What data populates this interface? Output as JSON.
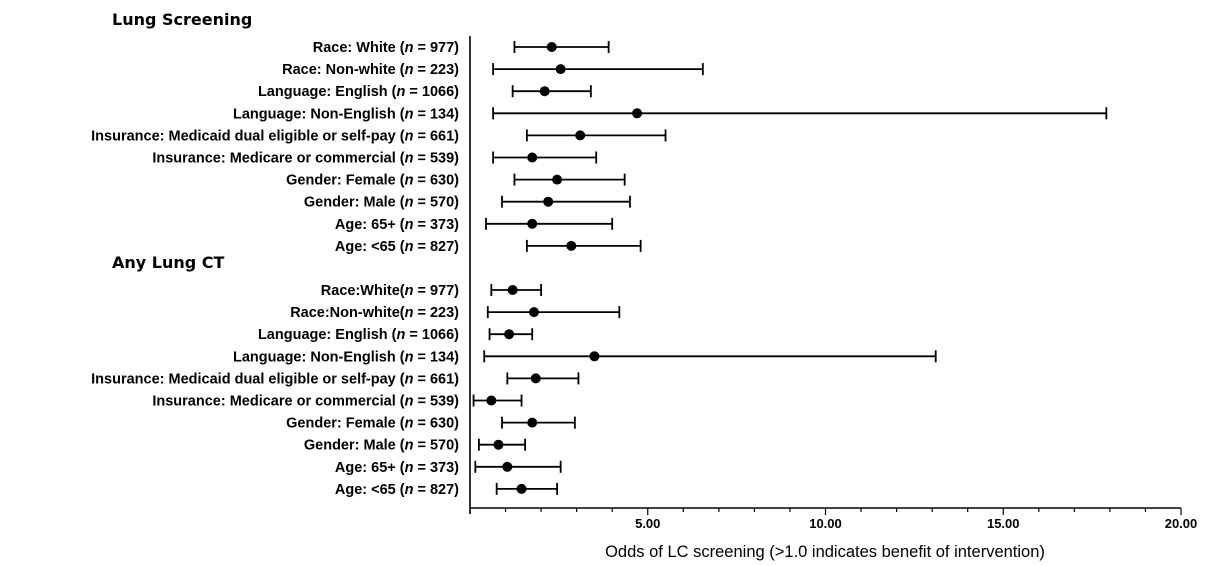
{
  "chart_data": {
    "type": "forest",
    "xlabel": "Odds of LC screening (>1.0 indicates benefit of intervention)",
    "xlim": [
      0,
      20
    ],
    "xticks": [
      "5.00",
      "10.00",
      "15.00",
      "20.00"
    ],
    "xtick_values": [
      5,
      10,
      15,
      20
    ],
    "grid": false,
    "groups": [
      {
        "title": "Lung Screening",
        "rows": [
          {
            "label_pre": "Race: White (",
            "n": "977",
            "estimate": 2.3,
            "low": 1.25,
            "high": 3.9
          },
          {
            "label_pre": "Race: Non-white (",
            "n": "223",
            "estimate": 2.55,
            "low": 0.65,
            "high": 6.55
          },
          {
            "label_pre": "Language: English (",
            "n": "1066",
            "estimate": 2.1,
            "low": 1.2,
            "high": 3.4
          },
          {
            "label_pre": "Language: Non-English (",
            "n": "134",
            "estimate": 4.7,
            "low": 0.65,
            "high": 17.9
          },
          {
            "label_pre": "Insurance: Medicaid dual eligible  or self-pay (",
            "n": "661",
            "estimate": 3.1,
            "low": 1.6,
            "high": 5.5
          },
          {
            "label_pre": "Insurance: Medicare or commercial (",
            "n": "539",
            "estimate": 1.75,
            "low": 0.65,
            "high": 3.55
          },
          {
            "label_pre": "Gender: Female (",
            "n": "630",
            "estimate": 2.45,
            "low": 1.25,
            "high": 4.35
          },
          {
            "label_pre": "Gender: Male (",
            "n": "570",
            "estimate": 2.2,
            "low": 0.9,
            "high": 4.5
          },
          {
            "label_pre": "Age: 65+ (",
            "n": "373",
            "estimate": 1.75,
            "low": 0.45,
            "high": 4.0
          },
          {
            "label_pre": "Age: <65 (",
            "n": "827",
            "estimate": 2.85,
            "low": 1.6,
            "high": 4.8
          }
        ]
      },
      {
        "title": "Any Lung CT",
        "rows": [
          {
            "label_pre": "Race:White(",
            "n": "977",
            "estimate": 1.2,
            "low": 0.6,
            "high": 2.0
          },
          {
            "label_pre": "Race:Non-white(",
            "n": "223",
            "estimate": 1.8,
            "low": 0.5,
            "high": 4.2
          },
          {
            "label_pre": "Language: English (",
            "n": "1066",
            "estimate": 1.1,
            "low": 0.55,
            "high": 1.75
          },
          {
            "label_pre": "Language: Non-English (",
            "n": "134",
            "estimate": 3.5,
            "low": 0.4,
            "high": 13.1
          },
          {
            "label_pre": "Insurance: Medicaid  dual eligible or self-pay (",
            "n": "661",
            "estimate": 1.85,
            "low": 1.05,
            "high": 3.05
          },
          {
            "label_pre": "Insurance: Medicare or commercial (",
            "n": "539",
            "estimate": 0.6,
            "low": 0.1,
            "high": 1.45
          },
          {
            "label_pre": "Gender: Female (",
            "n": "630",
            "estimate": 1.75,
            "low": 0.9,
            "high": 2.95
          },
          {
            "label_pre": "Gender: Male (",
            "n": "570",
            "estimate": 0.8,
            "low": 0.25,
            "high": 1.55
          },
          {
            "label_pre": "Age: 65+ (",
            "n": "373",
            "estimate": 1.05,
            "low": 0.15,
            "high": 2.55
          },
          {
            "label_pre": "Age: <65 (",
            "n": "827",
            "estimate": 1.45,
            "low": 0.75,
            "high": 2.45
          }
        ]
      }
    ]
  }
}
